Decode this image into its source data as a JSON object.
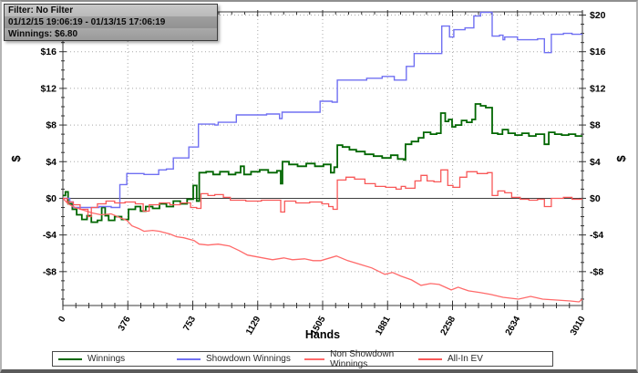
{
  "info_box": {
    "line1": "Filter: No Filter",
    "line2": "01/12/15 19:06:19 - 01/13/15 17:06:19",
    "line3": "Winnings: $6.80"
  },
  "chart_data": {
    "type": "line",
    "xlabel": "Hands",
    "ylabel_left": "$",
    "ylabel_right": "$",
    "xlim": [
      0,
      3010
    ],
    "ylim": [
      -11.7,
      20.35
    ],
    "x_ticks": [
      0,
      376,
      753,
      1129,
      1505,
      1881,
      2258,
      2634,
      3010
    ],
    "x_tick_labels": [
      "0",
      "376",
      "753",
      "1129",
      "1505",
      "1881",
      "2258",
      "2634",
      "3010"
    ],
    "x_minor_step": 75.25,
    "y_ticks": [
      -8,
      -4,
      0,
      4,
      8,
      12,
      16,
      20
    ],
    "y_tick_labels": [
      "-$8",
      "-$4",
      "$0",
      "$4",
      "$8",
      "$12",
      "$16",
      "$20"
    ],
    "y_minor_step": 1,
    "grid": "dotted",
    "zero_line": true,
    "legend_position": "bottom",
    "series": [
      {
        "name": "Winnings",
        "color": "#006600",
        "width": 1.8,
        "interp": "step",
        "points": [
          [
            0,
            0.3
          ],
          [
            15,
            0.7
          ],
          [
            30,
            -0.6
          ],
          [
            55,
            -1.2
          ],
          [
            80,
            -1.8
          ],
          [
            110,
            -2.3
          ],
          [
            140,
            -1.9
          ],
          [
            165,
            -2.6
          ],
          [
            200,
            -2.4
          ],
          [
            225,
            -1.0
          ],
          [
            245,
            -1.9
          ],
          [
            265,
            -2.4
          ],
          [
            300,
            -2.0
          ],
          [
            340,
            -2.3
          ],
          [
            380,
            -1.2
          ],
          [
            420,
            -0.9
          ],
          [
            450,
            -1.4
          ],
          [
            480,
            -0.9
          ],
          [
            520,
            -1.1
          ],
          [
            560,
            -0.6
          ],
          [
            600,
            -0.9
          ],
          [
            640,
            -0.3
          ],
          [
            680,
            -0.6
          ],
          [
            720,
            -0.1
          ],
          [
            755,
            1.4
          ],
          [
            775,
            -0.3
          ],
          [
            790,
            2.8
          ],
          [
            830,
            2.9
          ],
          [
            870,
            2.6
          ],
          [
            910,
            2.9
          ],
          [
            960,
            2.6
          ],
          [
            1000,
            2.8
          ],
          [
            1030,
            3.5
          ],
          [
            1050,
            2.6
          ],
          [
            1090,
            2.9
          ],
          [
            1140,
            3.1
          ],
          [
            1190,
            2.8
          ],
          [
            1240,
            3.0
          ],
          [
            1262,
            1.6
          ],
          [
            1272,
            4.0
          ],
          [
            1310,
            3.7
          ],
          [
            1360,
            3.5
          ],
          [
            1410,
            3.8
          ],
          [
            1460,
            3.5
          ],
          [
            1510,
            3.7
          ],
          [
            1552,
            2.8
          ],
          [
            1572,
            3.4
          ],
          [
            1590,
            5.8
          ],
          [
            1620,
            5.6
          ],
          [
            1660,
            5.3
          ],
          [
            1700,
            5.1
          ],
          [
            1750,
            4.8
          ],
          [
            1800,
            4.6
          ],
          [
            1850,
            4.4
          ],
          [
            1900,
            4.7
          ],
          [
            1940,
            4.3
          ],
          [
            1975,
            4.2
          ],
          [
            1985,
            5.9
          ],
          [
            2020,
            6.2
          ],
          [
            2060,
            6.6
          ],
          [
            2090,
            7.2
          ],
          [
            2130,
            7.0
          ],
          [
            2165,
            7.1
          ],
          [
            2190,
            9.3
          ],
          [
            2215,
            8.4
          ],
          [
            2235,
            8.6
          ],
          [
            2255,
            7.8
          ],
          [
            2275,
            8.0
          ],
          [
            2310,
            8.5
          ],
          [
            2340,
            8.3
          ],
          [
            2370,
            8.6
          ],
          [
            2390,
            10.3
          ],
          [
            2420,
            10.1
          ],
          [
            2450,
            9.9
          ],
          [
            2487,
            7.1
          ],
          [
            2520,
            7.0
          ],
          [
            2547,
            7.5
          ],
          [
            2580,
            7.1
          ],
          [
            2620,
            6.9
          ],
          [
            2660,
            7.1
          ],
          [
            2700,
            6.8
          ],
          [
            2740,
            7.0
          ],
          [
            2790,
            5.9
          ],
          [
            2815,
            7.2
          ],
          [
            2850,
            7.0
          ],
          [
            2890,
            6.9
          ],
          [
            2930,
            7.0
          ],
          [
            2970,
            6.8
          ],
          [
            3010,
            6.8
          ]
        ]
      },
      {
        "name": "Showdown Winnings",
        "color": "#7070f2",
        "width": 1.4,
        "interp": "step",
        "points": [
          [
            0,
            0
          ],
          [
            40,
            -0.4
          ],
          [
            60,
            -1.0
          ],
          [
            150,
            -1.0
          ],
          [
            210,
            -0.9
          ],
          [
            280,
            -1.0
          ],
          [
            330,
            1.5
          ],
          [
            370,
            2.7
          ],
          [
            470,
            2.6
          ],
          [
            555,
            3.1
          ],
          [
            600,
            3.2
          ],
          [
            640,
            4.4
          ],
          [
            700,
            4.4
          ],
          [
            730,
            5.6
          ],
          [
            785,
            8.1
          ],
          [
            880,
            8.0
          ],
          [
            900,
            8.3
          ],
          [
            995,
            8.3
          ],
          [
            1005,
            9.1
          ],
          [
            1120,
            9.1
          ],
          [
            1180,
            9.2
          ],
          [
            1255,
            8.7
          ],
          [
            1270,
            9.4
          ],
          [
            1480,
            9.4
          ],
          [
            1490,
            10.6
          ],
          [
            1560,
            10.5
          ],
          [
            1590,
            12.9
          ],
          [
            1700,
            12.9
          ],
          [
            1760,
            13.1
          ],
          [
            1850,
            13.3
          ],
          [
            1920,
            12.9
          ],
          [
            1990,
            14.4
          ],
          [
            2035,
            15.8
          ],
          [
            2150,
            15.8
          ],
          [
            2195,
            18.8
          ],
          [
            2240,
            17.6
          ],
          [
            2265,
            18.4
          ],
          [
            2330,
            18.6
          ],
          [
            2381,
            19.9
          ],
          [
            2420,
            20.3
          ],
          [
            2480,
            20.3
          ],
          [
            2487,
            17.7
          ],
          [
            2530,
            17.8
          ],
          [
            2550,
            17.3
          ],
          [
            2560,
            17.6
          ],
          [
            2634,
            17.3
          ],
          [
            2700,
            17.3
          ],
          [
            2750,
            17.4
          ],
          [
            2790,
            15.9
          ],
          [
            2830,
            17.9
          ],
          [
            2900,
            18.0
          ],
          [
            2950,
            17.9
          ],
          [
            3010,
            18.0
          ]
        ]
      },
      {
        "name": "Non Showdown Winnings",
        "color": "#ff6a6a",
        "width": 1.3,
        "interp": "linear",
        "points": [
          [
            0,
            0
          ],
          [
            30,
            -0.6
          ],
          [
            70,
            -1.0
          ],
          [
            120,
            -1.3
          ],
          [
            170,
            -1.6
          ],
          [
            220,
            -1.8
          ],
          [
            280,
            -1.7
          ],
          [
            330,
            -2.1
          ],
          [
            370,
            -2.4
          ],
          [
            400,
            -3.0
          ],
          [
            440,
            -3.3
          ],
          [
            470,
            -3.6
          ],
          [
            520,
            -3.5
          ],
          [
            560,
            -3.6
          ],
          [
            620,
            -3.9
          ],
          [
            660,
            -4.2
          ],
          [
            700,
            -4.3
          ],
          [
            760,
            -4.6
          ],
          [
            790,
            -5.0
          ],
          [
            840,
            -5.1
          ],
          [
            900,
            -5.0
          ],
          [
            965,
            -5.2
          ],
          [
            1020,
            -5.7
          ],
          [
            1070,
            -6.2
          ],
          [
            1130,
            -6.4
          ],
          [
            1215,
            -6.7
          ],
          [
            1280,
            -6.5
          ],
          [
            1330,
            -6.7
          ],
          [
            1400,
            -6.6
          ],
          [
            1450,
            -6.8
          ],
          [
            1494,
            -6.8
          ],
          [
            1585,
            -6.3
          ],
          [
            1650,
            -6.8
          ],
          [
            1720,
            -7.2
          ],
          [
            1790,
            -7.6
          ],
          [
            1865,
            -8.3
          ],
          [
            1910,
            -8.1
          ],
          [
            1960,
            -8.5
          ],
          [
            2020,
            -8.9
          ],
          [
            2075,
            -9.5
          ],
          [
            2130,
            -9.3
          ],
          [
            2180,
            -9.4
          ],
          [
            2250,
            -10.0
          ],
          [
            2290,
            -9.7
          ],
          [
            2350,
            -10.1
          ],
          [
            2420,
            -10.3
          ],
          [
            2480,
            -10.5
          ],
          [
            2550,
            -10.8
          ],
          [
            2640,
            -11.0
          ],
          [
            2710,
            -10.7
          ],
          [
            2780,
            -11.0
          ],
          [
            2860,
            -11.1
          ],
          [
            2940,
            -11.2
          ],
          [
            2990,
            -11.3
          ],
          [
            3010,
            -11.0
          ]
        ]
      },
      {
        "name": "All-In EV",
        "color": "#f85858",
        "width": 1.3,
        "interp": "step",
        "points": [
          [
            0,
            0
          ],
          [
            25,
            -0.4
          ],
          [
            60,
            -0.7
          ],
          [
            100,
            -1.2
          ],
          [
            145,
            -2.0
          ],
          [
            165,
            -1.0
          ],
          [
            200,
            -0.6
          ],
          [
            250,
            -0.3
          ],
          [
            300,
            -0.5
          ],
          [
            360,
            -0.4
          ],
          [
            420,
            -0.6
          ],
          [
            465,
            -1.4
          ],
          [
            500,
            -0.7
          ],
          [
            560,
            -0.5
          ],
          [
            620,
            -0.7
          ],
          [
            680,
            -0.5
          ],
          [
            740,
            -1.0
          ],
          [
            775,
            -1.1
          ],
          [
            800,
            0.5
          ],
          [
            840,
            0.3
          ],
          [
            880,
            0.4
          ],
          [
            930,
            0.1
          ],
          [
            970,
            -0.2
          ],
          [
            1060,
            -0.3
          ],
          [
            1150,
            -0.2
          ],
          [
            1262,
            -1.5
          ],
          [
            1285,
            -0.3
          ],
          [
            1350,
            -0.5
          ],
          [
            1430,
            -0.4
          ],
          [
            1500,
            -0.6
          ],
          [
            1540,
            -0.9
          ],
          [
            1565,
            -1.2
          ],
          [
            1590,
            2.0
          ],
          [
            1640,
            2.3
          ],
          [
            1690,
            2.1
          ],
          [
            1750,
            1.6
          ],
          [
            1810,
            1.3
          ],
          [
            1870,
            1.2
          ],
          [
            1930,
            1.0
          ],
          [
            1960,
            1.3
          ],
          [
            1985,
            1.1
          ],
          [
            2040,
            1.9
          ],
          [
            2075,
            2.5
          ],
          [
            2110,
            1.9
          ],
          [
            2150,
            1.8
          ],
          [
            2190,
            3.1
          ],
          [
            2230,
            1.4
          ],
          [
            2260,
            1.2
          ],
          [
            2300,
            2.3
          ],
          [
            2340,
            2.9
          ],
          [
            2400,
            2.7
          ],
          [
            2460,
            2.8
          ],
          [
            2487,
            0.3
          ],
          [
            2520,
            0.8
          ],
          [
            2560,
            0.6
          ],
          [
            2600,
            0.1
          ],
          [
            2650,
            -0.1
          ],
          [
            2700,
            -0.2
          ],
          [
            2750,
            -0.1
          ],
          [
            2790,
            -0.9
          ],
          [
            2830,
            0.0
          ],
          [
            2900,
            0.1
          ],
          [
            2950,
            -0.1
          ],
          [
            3010,
            0.0
          ]
        ]
      }
    ]
  }
}
